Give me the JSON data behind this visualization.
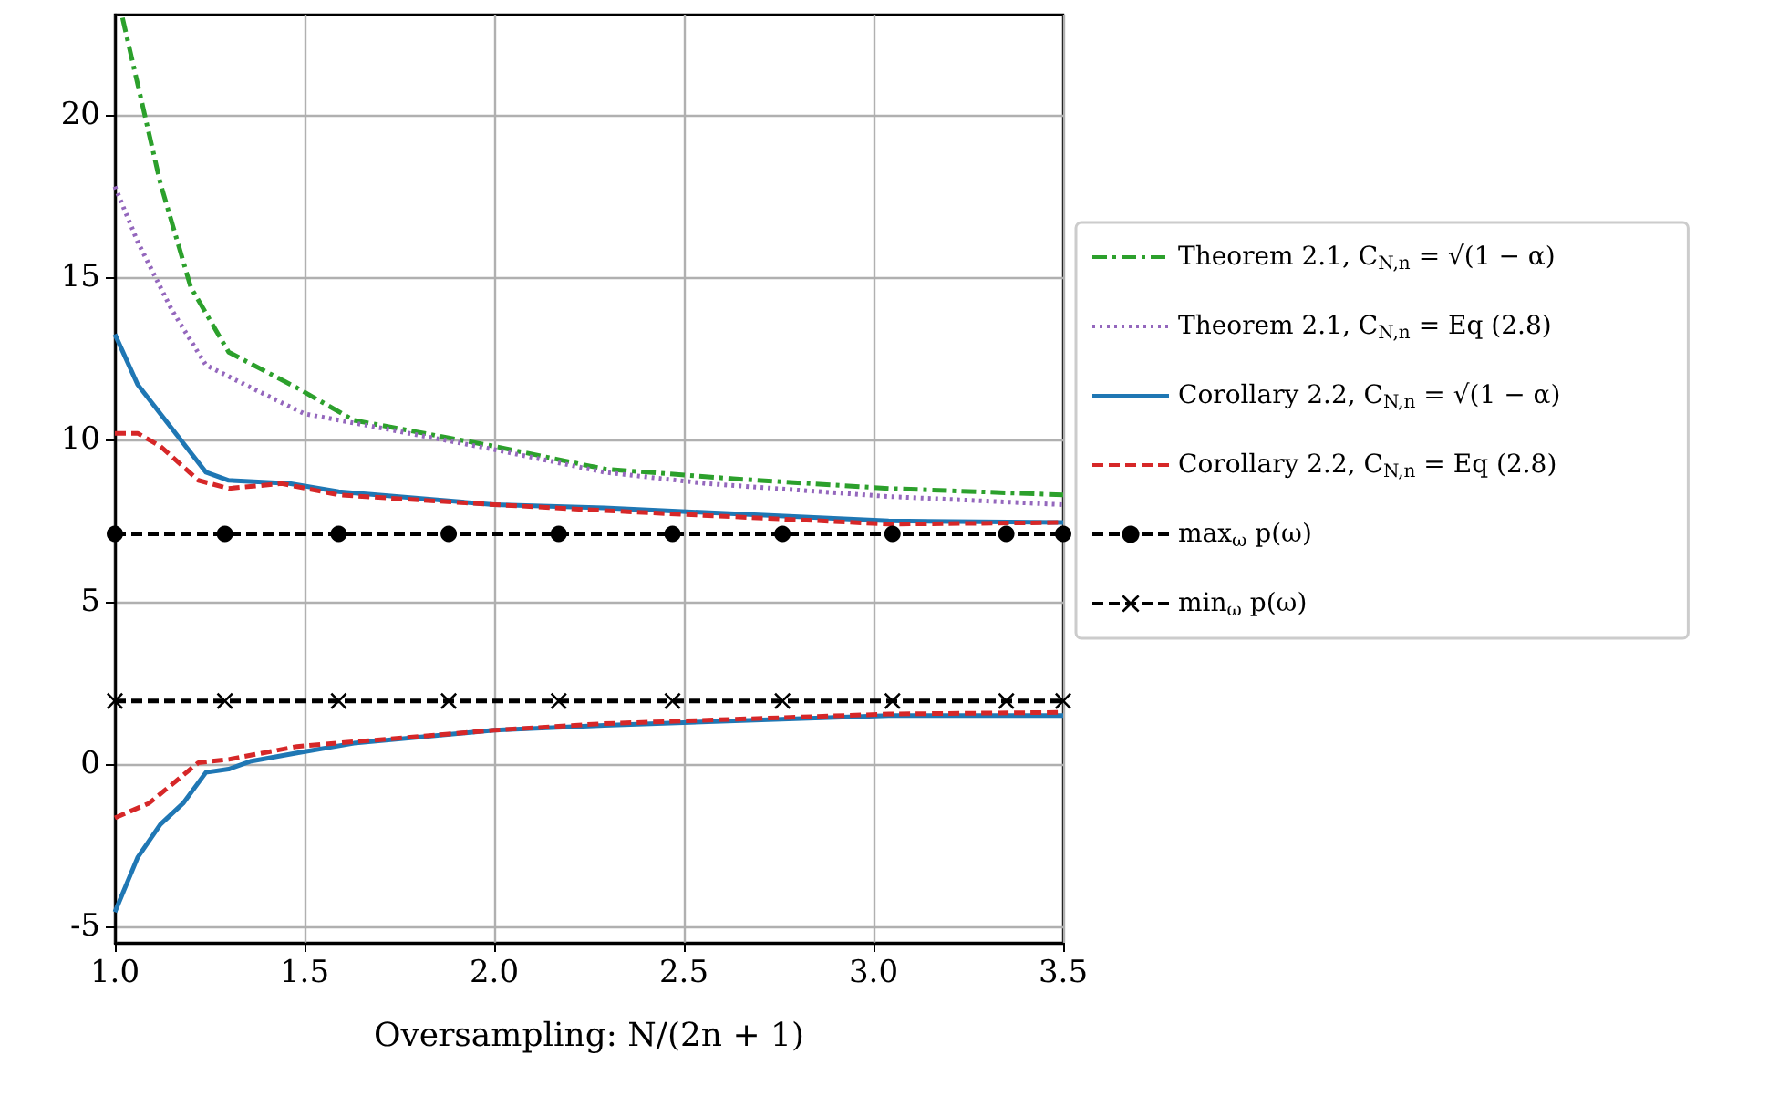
{
  "chart_data": {
    "type": "line",
    "xlabel": "Oversampling: N/(2n + 1)",
    "xlim": [
      1.0,
      3.5
    ],
    "xticks": [
      {
        "value": 1.0,
        "label": "1.0"
      },
      {
        "value": 1.5,
        "label": "1.5"
      },
      {
        "value": 2.0,
        "label": "2.0"
      },
      {
        "value": 2.5,
        "label": "2.5"
      },
      {
        "value": 3.0,
        "label": "3.0"
      },
      {
        "value": 3.5,
        "label": "3.5"
      }
    ],
    "ylim": [
      -5.5,
      23.1
    ],
    "yticks": [
      -5,
      0,
      5,
      10,
      15,
      20
    ],
    "grid": true,
    "legend": "right",
    "series": [
      {
        "name": "Theorem 2.1, C$_{N,n}$ = √(1 − α)",
        "color": "#2ca02c",
        "line_style": "dashdot",
        "marker": "none",
        "x": [
          1.02,
          1.12,
          1.2,
          1.3,
          1.48,
          1.63,
          2.0,
          2.29,
          2.63,
          3.04,
          3.5
        ],
        "values": [
          23.0,
          17.9,
          14.7,
          12.7,
          11.6,
          10.6,
          9.8,
          9.1,
          8.8,
          8.5,
          8.3
        ]
      },
      {
        "name": "Theorem 2.1, C$_{N,n}$ = Eq (2.8)",
        "color": "#9467bd",
        "line_style": "dotted",
        "marker": "none",
        "x": [
          1.0,
          1.06,
          1.15,
          1.24,
          1.36,
          1.5,
          1.73,
          2.0,
          2.29,
          2.56,
          3.04,
          3.5
        ],
        "values": [
          17.8,
          16.1,
          14.0,
          12.3,
          11.6,
          10.8,
          10.3,
          9.7,
          9.0,
          8.65,
          8.25,
          8.0
        ]
      },
      {
        "name": "Corollary 2.2, C$_{N,n}$ = √(1 − α)",
        "color": "#1f77b4",
        "line_style": "solid",
        "marker": "none",
        "x": [
          1.0,
          1.06,
          1.17,
          1.24,
          1.3,
          1.46,
          1.59,
          2.0,
          2.29,
          3.04,
          3.5
        ],
        "values": [
          13.25,
          11.7,
          10.05,
          9.0,
          8.75,
          8.65,
          8.4,
          8.0,
          7.9,
          7.5,
          7.45
        ]
      },
      {
        "name": "Corollary 2.2, C$_{N,n}$ = Eq (2.8)",
        "color": "#d62728",
        "line_style": "dashed",
        "marker": "none",
        "x": [
          1.0,
          1.06,
          1.12,
          1.22,
          1.3,
          1.44,
          1.59,
          2.0,
          2.32,
          3.04,
          3.5
        ],
        "values": [
          10.2,
          10.2,
          9.8,
          8.75,
          8.5,
          8.65,
          8.3,
          8.0,
          7.8,
          7.4,
          7.45
        ]
      },
      {
        "name": "max$_{ω}$ p(ω)",
        "color": "#000000",
        "line_style": "dashed",
        "marker": "circle",
        "x": [
          1.0,
          1.29,
          1.59,
          1.88,
          2.17,
          2.47,
          2.76,
          3.05,
          3.35,
          3.5
        ],
        "values": [
          7.1,
          7.1,
          7.1,
          7.1,
          7.1,
          7.1,
          7.1,
          7.1,
          7.1,
          7.1
        ]
      },
      {
        "name": "min$_{ω}$ p(ω)",
        "color": "#000000",
        "line_style": "dashed",
        "marker": "cross",
        "x": [
          1.0,
          1.29,
          1.59,
          1.88,
          2.17,
          2.47,
          2.76,
          3.05,
          3.35,
          3.5
        ],
        "values": [
          1.95,
          1.95,
          1.95,
          1.95,
          1.95,
          1.95,
          1.95,
          1.95,
          1.95,
          1.95
        ]
      },
      {
        "color": "#1f77b4",
        "line_style": "solid",
        "marker": "none",
        "x": [
          1.0,
          1.06,
          1.12,
          1.18,
          1.24,
          1.3,
          1.36,
          1.48,
          1.63,
          2.0,
          2.29,
          3.04,
          3.5
        ],
        "values": [
          -4.55,
          -2.87,
          -1.85,
          -1.2,
          -0.25,
          -0.15,
          0.1,
          0.35,
          0.65,
          1.05,
          1.2,
          1.5,
          1.5
        ]
      },
      {
        "color": "#d62728",
        "line_style": "dashed",
        "marker": "none",
        "x": [
          1.0,
          1.09,
          1.22,
          1.3,
          1.48,
          2.0,
          2.28,
          3.04,
          3.5
        ],
        "values": [
          -1.65,
          -1.2,
          0.05,
          0.15,
          0.55,
          1.05,
          1.25,
          1.55,
          1.6
        ]
      }
    ]
  }
}
